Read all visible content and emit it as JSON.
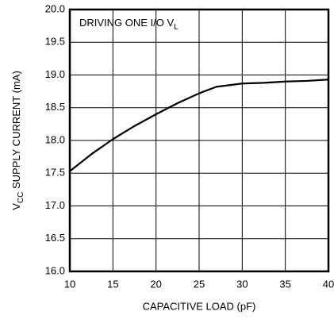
{
  "chart_data": {
    "type": "line",
    "annotation": [
      "DRIVING ONE I/O V",
      "L"
    ],
    "xlabel": "CAPACITIVE LOAD (pF)",
    "ylabel": [
      "V",
      "CC",
      " SUPPLY CURRENT (mA)"
    ],
    "x": [
      10,
      12.5,
      15,
      17.5,
      20,
      22.5,
      25,
      27,
      30,
      32.5,
      35,
      37.5,
      40
    ],
    "series": [
      {
        "color": "#000000",
        "values": [
          17.53,
          17.79,
          18.02,
          18.22,
          18.4,
          18.57,
          18.72,
          18.82,
          18.87,
          18.88,
          18.9,
          18.91,
          18.93
        ]
      }
    ],
    "xlim": [
      10,
      40
    ],
    "xticks": [
      10,
      15,
      20,
      25,
      30,
      35,
      40
    ],
    "ylim": [
      16,
      20
    ],
    "yticks": [
      {
        "value": 16,
        "label": "16.0"
      },
      {
        "value": 16.5,
        "label": "16.5"
      },
      {
        "value": 17,
        "label": "17.0"
      },
      {
        "value": 17.5,
        "label": "17.5"
      },
      {
        "value": 18,
        "label": "18.0"
      },
      {
        "value": 18.5,
        "label": "18.5"
      },
      {
        "value": 19,
        "label": "19.0"
      },
      {
        "value": 19.5,
        "label": "19.5"
      },
      {
        "value": 20,
        "label": "20.0"
      }
    ],
    "grid": true
  }
}
